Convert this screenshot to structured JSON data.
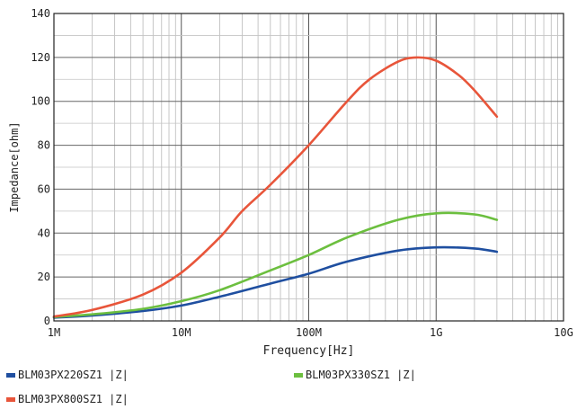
{
  "chart_data": {
    "type": "line",
    "xscale": "log",
    "xlim": [
      1000000,
      10000000000
    ],
    "ylim": [
      0,
      140
    ],
    "xlabel": "Frequency[Hz]",
    "ylabel": "Impedance[ohm]",
    "xtick_labels": [
      "1M",
      "10M",
      "100M",
      "1G",
      "10G"
    ],
    "xtick_values": [
      1000000,
      10000000,
      100000000,
      1000000000,
      10000000000
    ],
    "ytick_values": [
      0,
      20,
      40,
      60,
      80,
      100,
      120,
      140
    ],
    "ytick_labels": [
      "0",
      "20",
      "40",
      "60",
      "80",
      "100",
      "120",
      "140"
    ],
    "grid": true,
    "series": [
      {
        "name": "BLM03PX220SZ1 |Z|",
        "color": "#1f4fa0",
        "x": [
          1000000,
          2000000,
          5000000,
          10000000,
          20000000,
          50000000,
          100000000,
          200000000,
          500000000,
          1000000000,
          2000000000,
          3000000000
        ],
        "y": [
          1.5,
          2.5,
          4.5,
          7,
          11,
          17,
          21.5,
          27,
          32,
          33.5,
          33,
          31.5
        ]
      },
      {
        "name": "BLM03PX330SZ1 |Z|",
        "color": "#6cbf3f",
        "x": [
          1000000,
          2000000,
          5000000,
          10000000,
          20000000,
          50000000,
          100000000,
          200000000,
          500000000,
          1000000000,
          2000000000,
          3000000000
        ],
        "y": [
          1.8,
          3,
          5.5,
          9,
          14,
          23,
          30,
          38,
          46,
          49,
          48.5,
          46
        ]
      },
      {
        "name": "BLM03PX800SZ1 |Z|",
        "color": "#e8553a",
        "x": [
          1000000,
          2000000,
          5000000,
          10000000,
          20000000,
          30000000,
          50000000,
          100000000,
          200000000,
          300000000,
          500000000,
          700000000,
          1000000000,
          1500000000,
          2000000000,
          3000000000
        ],
        "y": [
          2,
          5,
          12,
          22,
          38,
          50,
          62,
          80,
          100,
          110,
          118,
          120,
          118.5,
          112,
          105,
          93
        ]
      }
    ]
  }
}
